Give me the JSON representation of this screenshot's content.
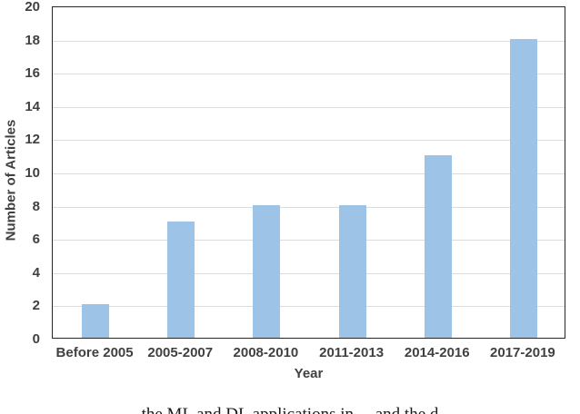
{
  "chart_data": {
    "type": "bar",
    "title": "",
    "categories": [
      "Before 2005",
      "2005-2007",
      "2008-2010",
      "2011-2013",
      "2014-2016",
      "2017-2019"
    ],
    "values": [
      2,
      7,
      8,
      8,
      11,
      18
    ],
    "xlabel": "Year",
    "ylabel": "Number of Articles",
    "ylim": [
      0,
      20
    ],
    "yticks": [
      0,
      2,
      4,
      6,
      8,
      10,
      12,
      14,
      16,
      18,
      20
    ],
    "grid": "horizontal",
    "legend_position": "none",
    "bar_color": "#9DC3E6",
    "gridline_color": "#DCDCDC",
    "axis_text_color": "#404040",
    "plot_border_color": "#262626"
  },
  "caption": {
    "fragment_clipped": "the ML and DL applications in ... and the d"
  }
}
